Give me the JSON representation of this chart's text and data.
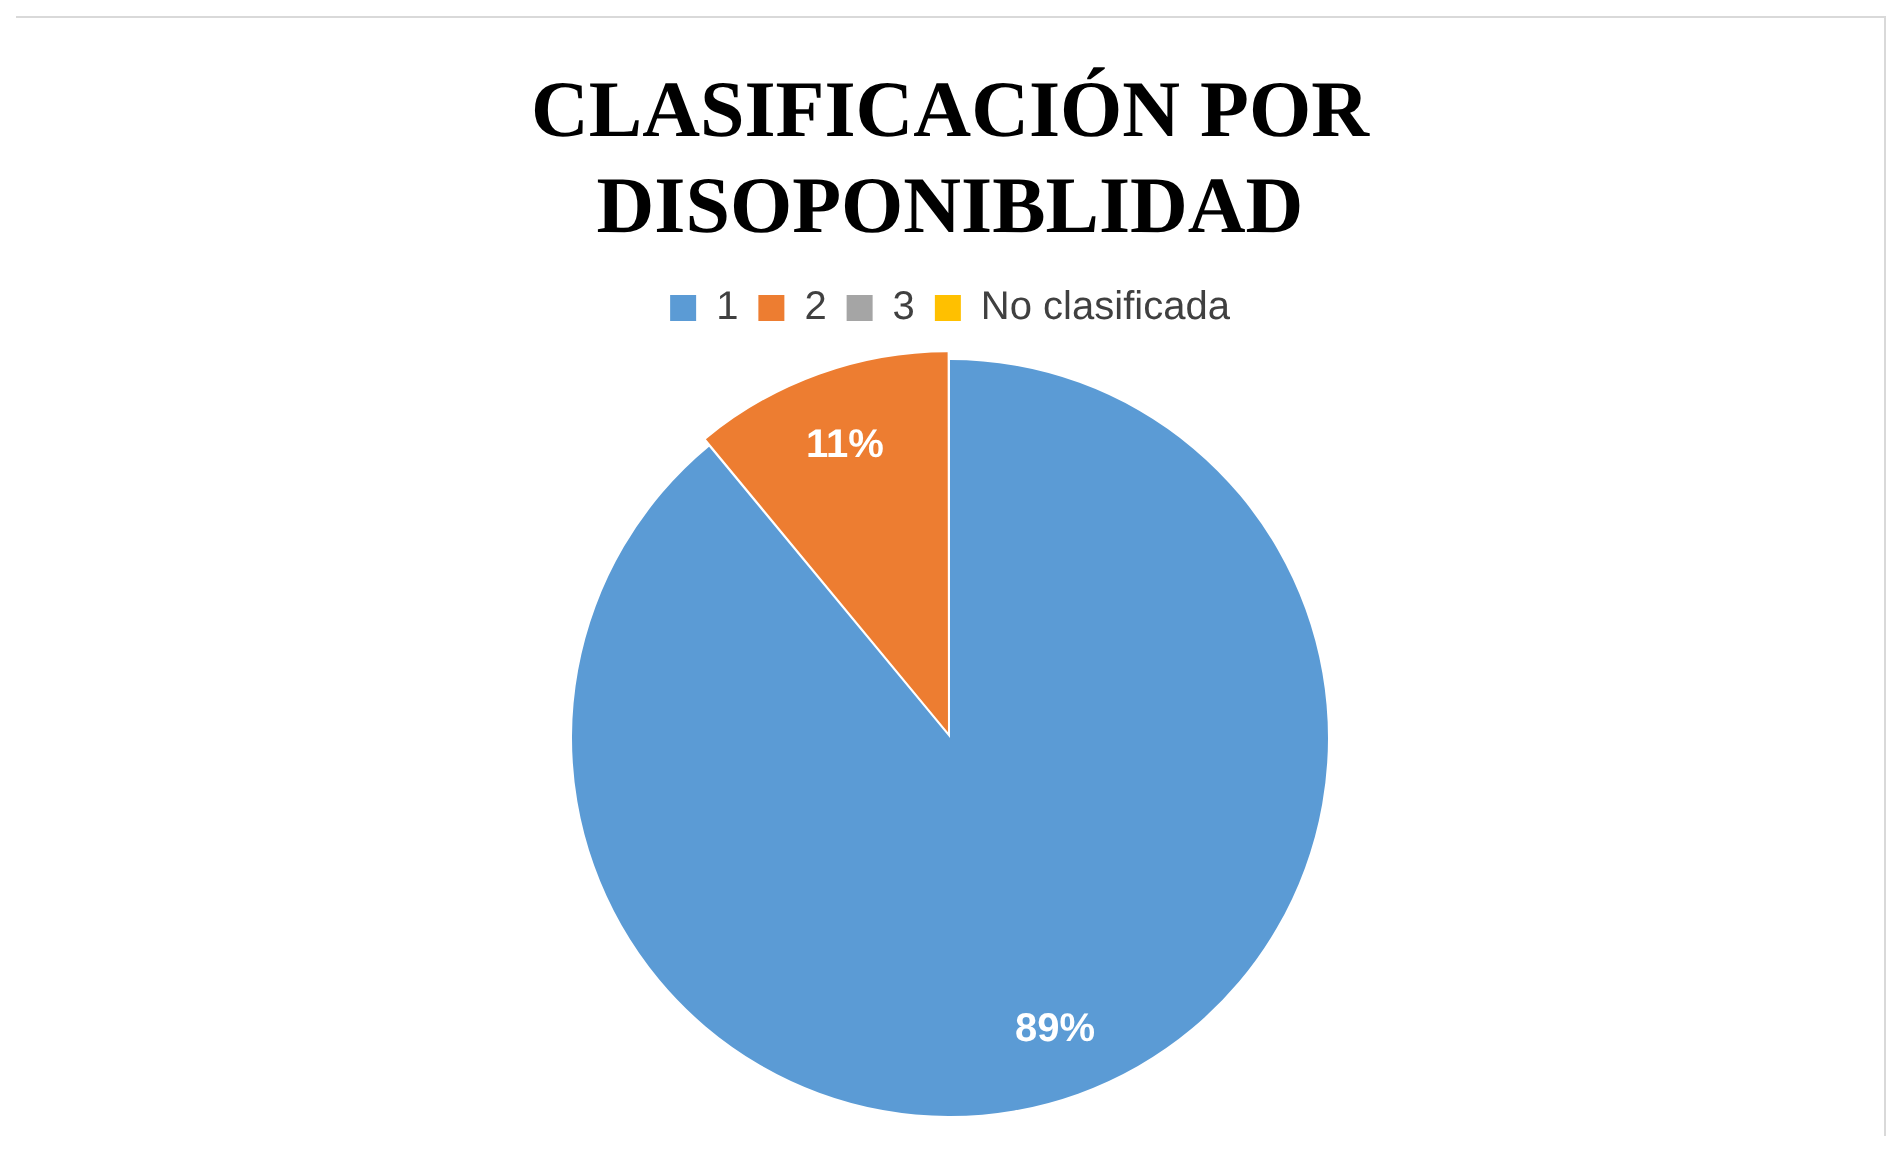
{
  "chart_data": {
    "type": "pie",
    "title": "CLASIFICACIÓN POR DISOPONIBLIDAD",
    "categories": [
      "1",
      "2",
      "3",
      "No clasificada"
    ],
    "values": [
      89,
      11,
      0,
      0
    ],
    "colors": [
      "#5b9bd5",
      "#ed7d31",
      "#a5a5a5",
      "#ffc000"
    ],
    "value_labels": [
      "89%",
      "11%",
      null,
      null
    ],
    "legend": "top"
  }
}
